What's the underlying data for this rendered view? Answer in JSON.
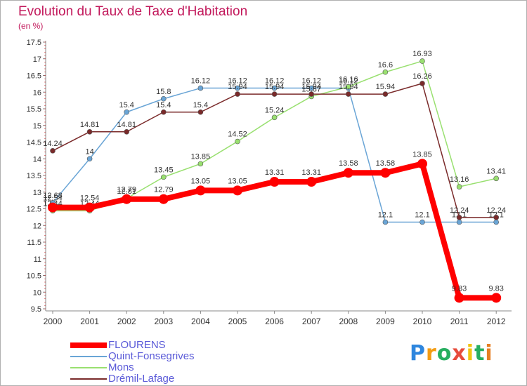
{
  "chart_data": {
    "type": "line",
    "title": "Evolution du Taux de Taxe d'Habitation",
    "subtitle": "(en %)",
    "x": [
      "2000",
      "2001",
      "2002",
      "2003",
      "2004",
      "2005",
      "2006",
      "2007",
      "2008",
      "2009",
      "2010",
      "2011",
      "2012"
    ],
    "ylim": [
      9.5,
      17.5
    ],
    "yticks": [
      "9.5",
      "10",
      "10.5",
      "11",
      "11.5",
      "12",
      "12.5",
      "13",
      "13.5",
      "14",
      "14.5",
      "15",
      "15.5",
      "16",
      "16.5",
      "17",
      "17.5"
    ],
    "grid": false,
    "legend_position": "bottom-left",
    "series": [
      {
        "name": "FLOURENS",
        "color": "#ff0000",
        "values": [
          12.54,
          12.54,
          12.79,
          12.79,
          13.05,
          13.05,
          13.31,
          13.31,
          13.58,
          13.58,
          13.85,
          9.83,
          9.83
        ],
        "labels": [
          "12.54",
          "12.54",
          "12.79",
          "12.79",
          "13.05",
          "13.05",
          "13.31",
          "13.31",
          "13.58",
          "13.58",
          "13.85",
          "9.83",
          "9.83"
        ]
      },
      {
        "name": "Quint-Fonsegrives",
        "color": "#6aa5d6",
        "values": [
          12.68,
          14,
          15.4,
          15.8,
          16.12,
          16.12,
          16.12,
          16.12,
          16.12,
          12.1,
          12.1,
          12.1,
          12.1
        ],
        "labels": [
          "12.68",
          "14",
          "15.4",
          "15.8",
          "16.12",
          "16.12",
          "16.12",
          "16.12",
          "16.12",
          "12.1",
          "12.1",
          "12.1",
          "12.1"
        ]
      },
      {
        "name": "Mons",
        "color": "#99e070",
        "values": [
          12.44,
          12.44,
          12.81,
          13.45,
          13.85,
          14.52,
          15.24,
          15.87,
          16.16,
          16.6,
          16.93,
          13.16,
          13.41
        ],
        "labels": [
          "12.44",
          "12.44",
          "12.81",
          "13.45",
          "13.85",
          "14.52",
          "15.24",
          "15.87",
          "16.16",
          "16.6",
          "16.93",
          "13.16",
          "13.41"
        ]
      },
      {
        "name": "Drémil-Lafage",
        "color": "#7a2a2a",
        "values": [
          14.24,
          14.81,
          14.81,
          15.4,
          15.4,
          15.94,
          15.94,
          15.94,
          15.94,
          15.94,
          16.26,
          12.24,
          12.24
        ],
        "labels": [
          "14.24",
          "14.81",
          "14.81",
          "15.4",
          "15.4",
          "15.94",
          "15.94",
          "15.94",
          "15.94",
          "15.94",
          "16.26",
          "12.24",
          "12.24"
        ]
      }
    ]
  },
  "brand": {
    "letters": [
      "P",
      "r",
      "o",
      "x",
      "i",
      "t",
      "i"
    ],
    "colors": [
      "#2e86de",
      "#f39c12",
      "#27ae60",
      "#e74c3c",
      "#f1c40f",
      "#27ae60",
      "#e67e22"
    ]
  }
}
